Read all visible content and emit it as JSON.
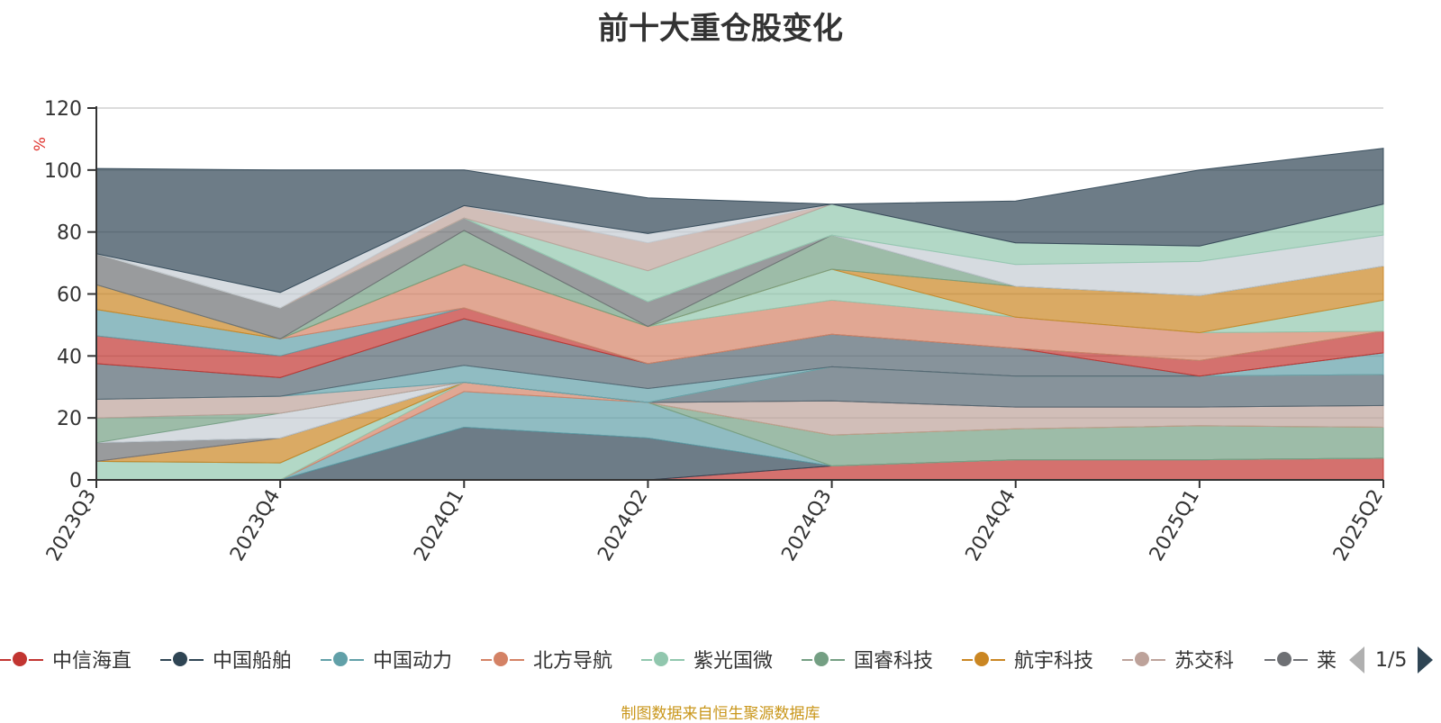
{
  "title": "前十大重仓股变化",
  "footer": "制图数据来自恒生聚源数据库",
  "legend_page": "1/5",
  "chart_data": {
    "type": "area",
    "stacked": true,
    "title": "前十大重仓股变化",
    "ylabel": "%",
    "ylim": [
      0,
      120
    ],
    "yticks": [
      0,
      20,
      40,
      60,
      80,
      100,
      120
    ],
    "categories": [
      "2023Q3",
      "2023Q4",
      "2024Q1",
      "2024Q2",
      "2024Q3",
      "2024Q4",
      "2025Q1",
      "2025Q2"
    ],
    "grid": true,
    "legend_position": "bottom",
    "series": [
      {
        "name": "中信海直",
        "color": "#c23531",
        "values": [
          0,
          0,
          0,
          0,
          4.5,
          6.5,
          6.5,
          7
        ]
      },
      {
        "name": "中国船舶",
        "color": "#2f4554",
        "values": [
          0,
          0,
          17,
          13.5,
          0,
          0,
          0,
          0
        ]
      },
      {
        "name": "中国动力",
        "color": "#61a0a8",
        "values": [
          0,
          0,
          11.5,
          11.5,
          0,
          0,
          0,
          0
        ]
      },
      {
        "name": "北方导航",
        "color": "#d48265",
        "values": [
          0,
          0,
          3,
          0,
          0,
          0,
          0,
          0
        ]
      },
      {
        "name": "紫光国微",
        "color": "#91c7ae",
        "values": [
          6,
          5.5,
          0,
          0,
          0,
          0,
          0,
          0
        ]
      },
      {
        "name": "国睿科技",
        "color": "#749f83",
        "values": [
          0,
          0,
          0,
          0,
          10,
          10,
          11,
          10
        ]
      },
      {
        "name": "航宇科技",
        "color": "#ca8622",
        "values": [
          0,
          8,
          0,
          0,
          0,
          0,
          0,
          0
        ]
      }
    ],
    "others": [
      {
        "color": "#bda29a",
        "values": [
          0,
          0,
          0,
          0,
          11,
          7,
          6,
          7
        ]
      },
      {
        "color": "#6e7074",
        "values": [
          6,
          0,
          0,
          0,
          0,
          0,
          0,
          0
        ]
      },
      {
        "color": "#546570",
        "values": [
          0,
          0,
          0,
          0,
          11,
          10,
          10,
          10
        ]
      },
      {
        "color": "#c4ccd3",
        "values": [
          0,
          8,
          0,
          0,
          0,
          0,
          0,
          0
        ]
      },
      {
        "color": "#749f83",
        "values": [
          8,
          0,
          0,
          0,
          0,
          0,
          0,
          0
        ]
      },
      {
        "color": "#bda29a",
        "values": [
          6,
          5.5,
          0,
          0,
          0,
          0,
          0,
          0
        ]
      },
      {
        "color": "#61a0a8",
        "values": [
          0,
          0,
          5.5,
          4.5,
          0,
          0,
          0,
          7
        ]
      },
      {
        "color": "#546570",
        "values": [
          11.5,
          6,
          15,
          8,
          10.5,
          9,
          0,
          0
        ]
      },
      {
        "color": "#c23531",
        "values": [
          9,
          7,
          3.5,
          0,
          0,
          0,
          5,
          7
        ]
      },
      {
        "color": "#61a0a8",
        "values": [
          8.5,
          5.5,
          0,
          0,
          0,
          0,
          0,
          0
        ]
      },
      {
        "color": "#d48265",
        "values": [
          0,
          0,
          14,
          12,
          11,
          10,
          9,
          0
        ]
      },
      {
        "color": "#91c7ae",
        "values": [
          0,
          0,
          0,
          0,
          10,
          0,
          0,
          10
        ]
      },
      {
        "color": "#ca8622",
        "values": [
          8,
          0,
          0,
          0,
          0,
          10,
          12,
          11
        ]
      },
      {
        "color": "#749f83",
        "values": [
          0,
          0,
          11,
          0,
          11,
          0,
          0,
          0
        ]
      },
      {
        "color": "#6e7074",
        "values": [
          10,
          10,
          4,
          8,
          0,
          0,
          0,
          0
        ]
      },
      {
        "color": "#c4ccd3",
        "values": [
          0,
          0,
          0,
          0,
          0,
          7,
          11,
          10
        ]
      },
      {
        "color": "#91c7ae",
        "values": [
          0,
          0,
          0,
          10,
          10,
          7,
          5,
          10
        ]
      },
      {
        "color": "#bda29a",
        "values": [
          0,
          0,
          4,
          9,
          0,
          0,
          0,
          0
        ]
      },
      {
        "color": "#c4ccd3",
        "values": [
          0,
          5,
          0,
          3,
          0,
          0,
          0,
          0
        ]
      },
      {
        "color": "#2f4554",
        "values": [
          27.5,
          39.5,
          11.5,
          11.5,
          0,
          13.5,
          24.5,
          18
        ]
      }
    ]
  },
  "legend": [
    {
      "label": "中信海直",
      "color": "#c23531",
      "icon": "circle"
    },
    {
      "label": "中国船舶",
      "color": "#2f4554",
      "icon": "circle"
    },
    {
      "label": "中国动力",
      "color": "#61a0a8",
      "icon": "circle"
    },
    {
      "label": "北方导航",
      "color": "#d48265",
      "icon": "circle"
    },
    {
      "label": "紫光国微",
      "color": "#91c7ae",
      "icon": "circle"
    },
    {
      "label": "国睿科技",
      "color": "#749f83",
      "icon": "circle"
    },
    {
      "label": "航宇科技",
      "color": "#ca8622",
      "icon": "circle"
    },
    {
      "label": "苏交科",
      "color": "#bda29a",
      "icon": "circle"
    },
    {
      "label": "莱",
      "color": "#6e7074",
      "icon": "circle"
    }
  ]
}
